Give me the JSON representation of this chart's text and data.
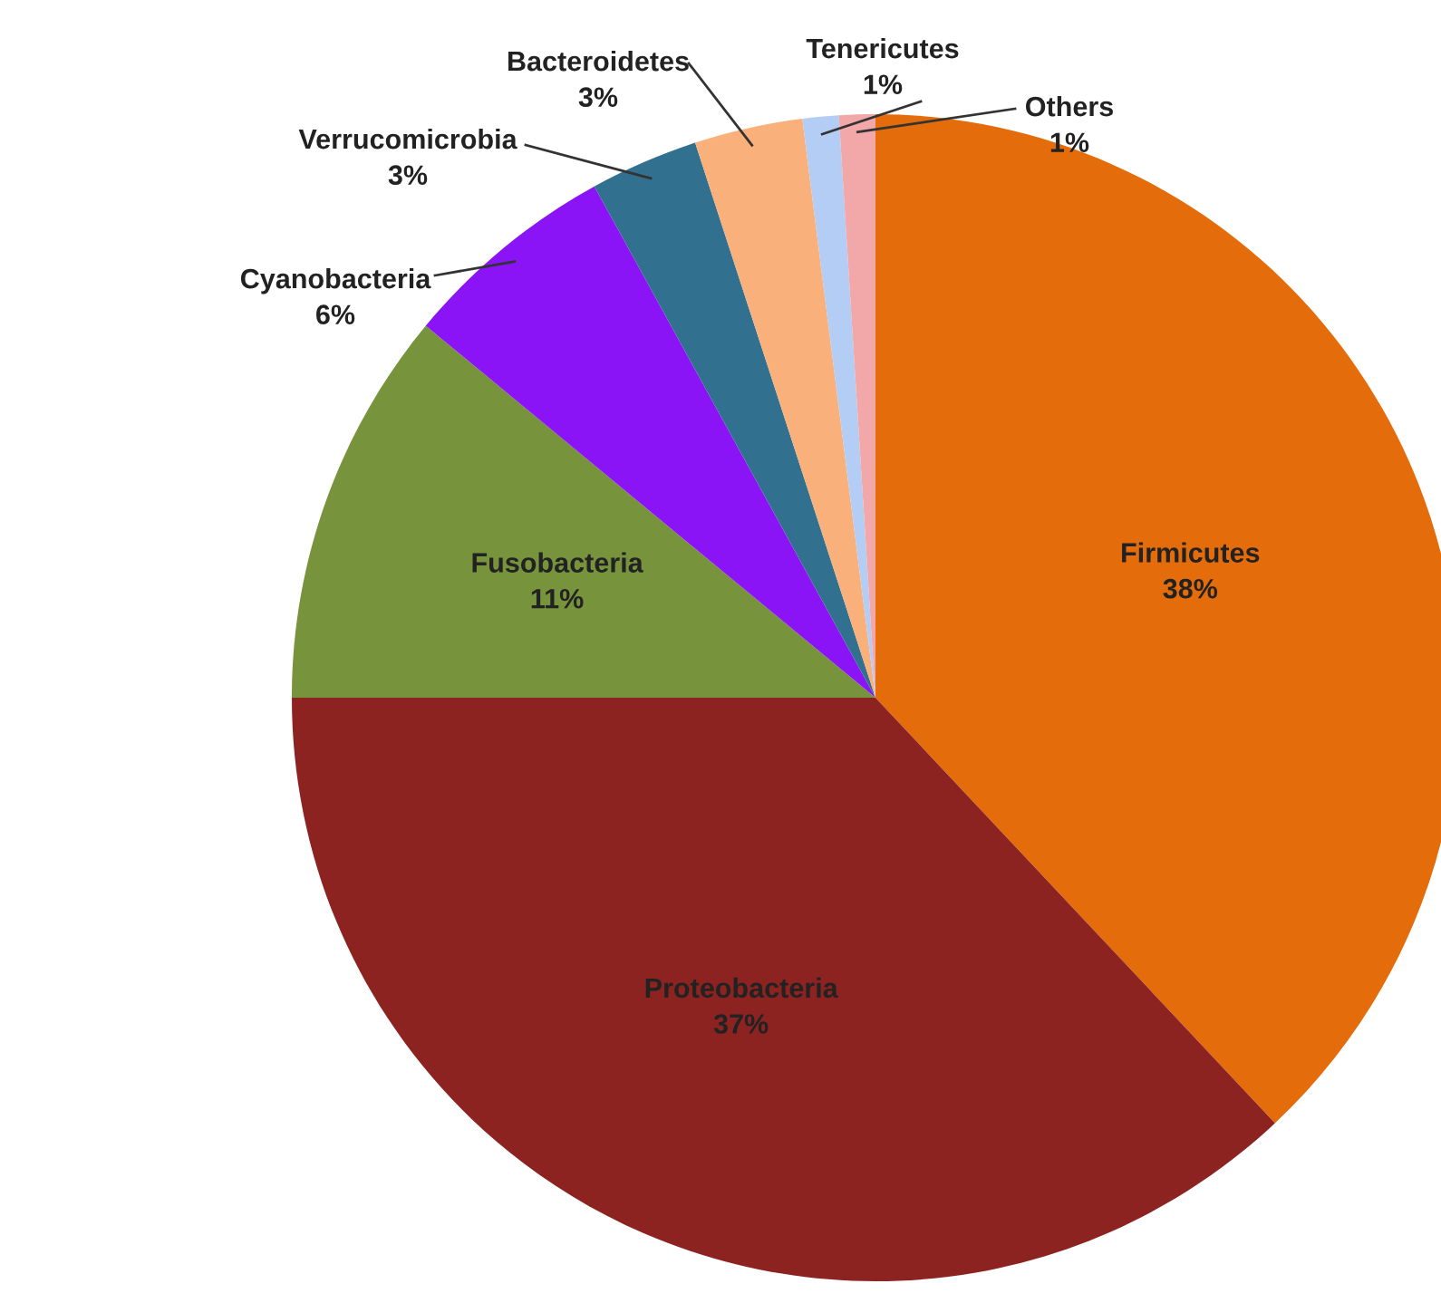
{
  "chart_data": {
    "type": "pie",
    "categories": [
      "Firmicutes",
      "Proteobacteria",
      "Fusobacteria",
      "Cyanobacteria",
      "Verrucomicrobia",
      "Bacteroidetes",
      "Tenericutes",
      "Others"
    ],
    "values": [
      38,
      37,
      11,
      6,
      3,
      3,
      1,
      1
    ],
    "colors": [
      "#e46c0a",
      "#8c2320",
      "#77933c",
      "#8a14f5",
      "#31708f",
      "#fab07a",
      "#b4cdf4",
      "#f2a7a9"
    ],
    "value_labels": [
      "38%",
      "37%",
      "11%",
      "6%",
      "3%",
      "3%",
      "1%",
      "1%"
    ],
    "legend": false
  }
}
